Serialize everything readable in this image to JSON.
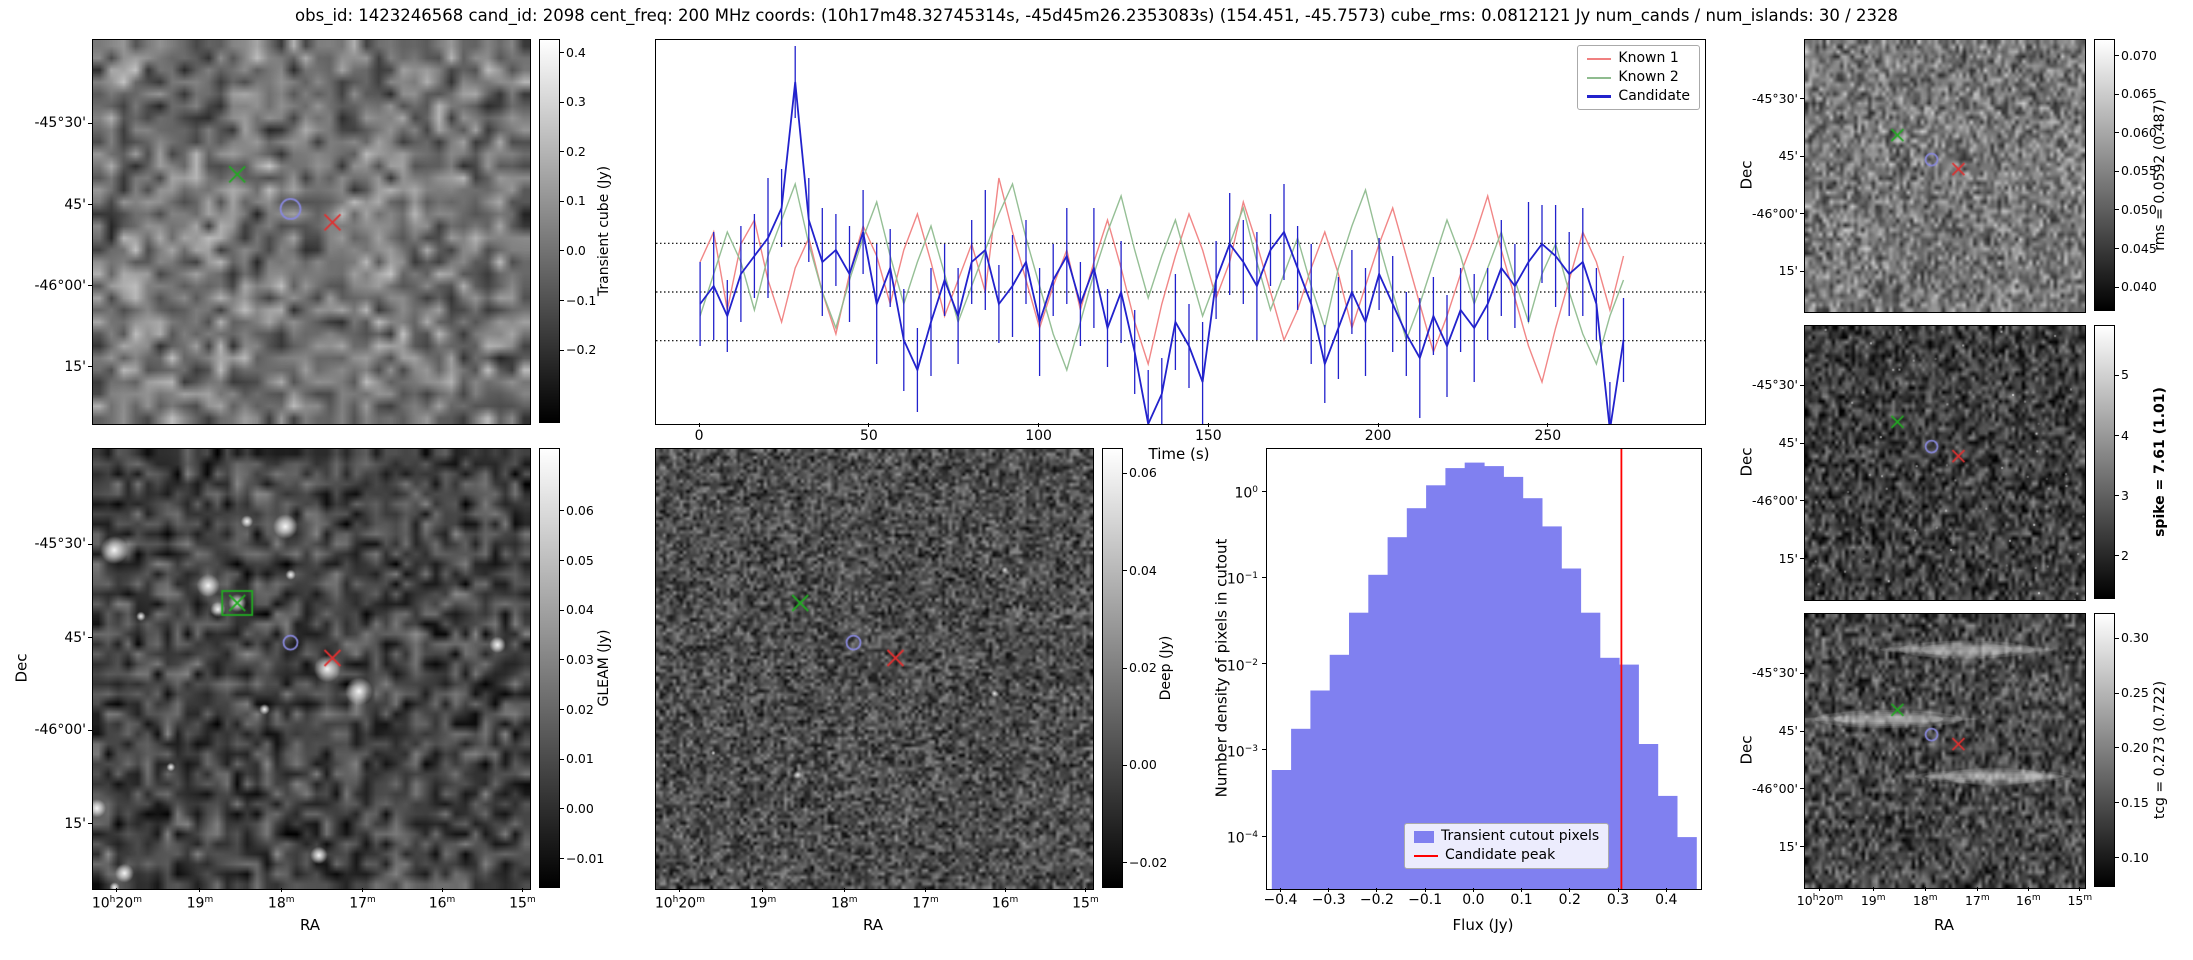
{
  "title": "obs_id: 1423246568 cand_id: 2098 cent_freq: 200 MHz coords: (10h17m48.32745314s, -45d45m26.2353083s) (154.451, -45.7573) cube_rms: 0.0812121 Jy num_cands / num_islands: 30 / 2328",
  "colors": {
    "known1": "#f08080",
    "known2": "#8fbc8f",
    "candidate": "#2222cc",
    "hist_fill": "#8080f0",
    "peak_line": "#ff0000",
    "marker_green": "#22aa22",
    "marker_red": "#e03030",
    "marker_blue": "#8888dd"
  },
  "axis_labels": {
    "ra": "RA",
    "dec": "Dec",
    "time": "Time (s)",
    "flux": "Flux (Jy)",
    "hist_y": "Number density of pixels in cutout"
  },
  "dec_ticks": [
    "-45°30'",
    "45'",
    "-46°00'",
    "15'"
  ],
  "ra_ticks": [
    "10h20m",
    "19m",
    "18m",
    "17m",
    "16m",
    "15m"
  ],
  "markers": {
    "green": {
      "x": 0.33,
      "y": 0.35
    },
    "blue": {
      "x": 0.452,
      "y": 0.44
    },
    "red": {
      "x": 0.548,
      "y": 0.475
    }
  },
  "panels": {
    "transient": {
      "cbar_label": "Transient cube (Jy)",
      "cbar_ticks": [
        "0.4",
        "0.3",
        "0.2",
        "0.1",
        "0.0",
        "-0.1",
        "-0.2"
      ]
    },
    "gleam": {
      "cbar_label": "GLEAM (Jy)",
      "cbar_ticks": [
        "0.06",
        "0.05",
        "0.04",
        "0.03",
        "0.02",
        "0.01",
        "0.00",
        "-0.01"
      ]
    },
    "deep": {
      "cbar_label": "Deep (Jy)",
      "cbar_ticks": [
        "0.06",
        "0.04",
        "0.02",
        "0.00",
        "-0.02"
      ]
    },
    "rms": {
      "cbar_label": "rms = 0.0592 (0.487)",
      "cbar_ticks": [
        "0.070",
        "0.065",
        "0.060",
        "0.055",
        "0.050",
        "0.045",
        "0.040"
      ]
    },
    "spike": {
      "cbar_label": "spike = 7.61 (1.01)",
      "cbar_ticks": [
        "5",
        "4",
        "3",
        "2"
      ]
    },
    "tcg": {
      "cbar_label": "tcg = 0.273 (0.722)",
      "cbar_ticks": [
        "0.30",
        "0.25",
        "0.20",
        "0.15",
        "0.10"
      ]
    }
  },
  "chart_data": [
    {
      "id": "lightcurve",
      "type": "line",
      "xlabel": "Time (s)",
      "xlim": [
        -13,
        296
      ],
      "ylim": [
        -0.22,
        0.42
      ],
      "xticks": [
        0,
        50,
        100,
        150,
        200,
        250
      ],
      "hlines": [
        0.0812121,
        0.0,
        -0.0812121
      ],
      "legend_loc": "upper right",
      "x": [
        0,
        4,
        8,
        12,
        16,
        20,
        24,
        28,
        32,
        36,
        40,
        44,
        48,
        52,
        56,
        60,
        64,
        68,
        72,
        76,
        80,
        84,
        88,
        92,
        96,
        100,
        104,
        108,
        112,
        116,
        120,
        124,
        128,
        132,
        136,
        140,
        144,
        148,
        152,
        156,
        160,
        164,
        168,
        172,
        176,
        180,
        184,
        188,
        192,
        196,
        200,
        204,
        208,
        212,
        216,
        220,
        224,
        228,
        232,
        236,
        240,
        244,
        248,
        252,
        256,
        260,
        264,
        268,
        272
      ],
      "series": [
        {
          "name": "Known 1",
          "y": [
            0.05,
            0.1,
            -0.03,
            0.08,
            0.12,
            0.02,
            -0.05,
            0.04,
            0.09,
            0.0,
            -0.07,
            0.03,
            0.11,
            0.06,
            -0.02,
            0.07,
            0.13,
            0.05,
            -0.04,
            0.02,
            0.08,
            0.0,
            0.19,
            0.1,
            0.02,
            -0.06,
            0.01,
            0.07,
            -0.03,
            0.05,
            0.12,
            0.04,
            -0.05,
            -0.12,
            -0.02,
            0.06,
            0.13,
            0.07,
            -0.01,
            0.05,
            0.15,
            0.08,
            0.0,
            -0.08,
            -0.03,
            0.04,
            0.1,
            0.03,
            -0.06,
            0.01,
            0.08,
            0.14,
            0.06,
            -0.02,
            -0.1,
            -0.04,
            0.03,
            0.09,
            0.16,
            0.07,
            -0.01,
            -0.09,
            -0.15,
            -0.06,
            0.02,
            0.1,
            0.05,
            -0.03,
            0.06
          ]
        },
        {
          "name": "Known 2",
          "y": [
            -0.04,
            0.03,
            0.1,
            0.05,
            -0.03,
            0.06,
            0.12,
            0.18,
            0.08,
            0.0,
            -0.06,
            0.02,
            0.09,
            0.15,
            0.06,
            -0.02,
            0.05,
            0.11,
            0.03,
            -0.05,
            0.01,
            0.07,
            0.13,
            0.18,
            0.09,
            0.01,
            -0.07,
            -0.13,
            -0.05,
            0.03,
            0.1,
            0.16,
            0.07,
            -0.01,
            0.06,
            0.12,
            0.04,
            -0.04,
            0.02,
            0.08,
            0.14,
            0.05,
            -0.03,
            0.03,
            0.09,
            0.01,
            -0.06,
            0.04,
            0.11,
            0.17,
            0.08,
            0.0,
            -0.08,
            -0.02,
            0.05,
            0.12,
            0.06,
            -0.02,
            0.04,
            0.1,
            0.02,
            -0.05,
            0.03,
            0.08,
            0.0,
            -0.07,
            -0.12,
            -0.04,
            0.02
          ]
        },
        {
          "name": "Candidate",
          "y": [
            -0.02,
            0.01,
            -0.04,
            0.03,
            0.06,
            0.09,
            0.14,
            0.35,
            0.12,
            0.05,
            0.07,
            0.03,
            0.1,
            -0.02,
            0.04,
            -0.08,
            -0.13,
            -0.05,
            0.02,
            -0.04,
            0.05,
            0.07,
            -0.02,
            0.01,
            0.05,
            -0.05,
            0.02,
            0.06,
            -0.02,
            0.04,
            -0.06,
            0.0,
            -0.1,
            -0.22,
            -0.17,
            -0.05,
            -0.09,
            -0.15,
            0.02,
            0.08,
            0.05,
            0.01,
            0.07,
            0.1,
            0.04,
            -0.02,
            -0.12,
            -0.06,
            0.0,
            -0.05,
            0.03,
            -0.02,
            -0.07,
            -0.11,
            -0.04,
            -0.09,
            -0.03,
            -0.06,
            -0.02,
            0.04,
            0.01,
            0.05,
            0.08,
            0.06,
            0.03,
            0.05,
            -0.02,
            -0.23,
            -0.08
          ],
          "yerr": [
            0.07,
            0.09,
            0.06,
            0.08,
            0.07,
            0.1,
            0.065,
            0.06,
            0.07,
            0.09,
            0.06,
            0.08,
            0.07,
            0.1,
            0.065,
            0.085,
            0.07,
            0.09,
            0.06,
            0.08,
            0.07,
            0.1,
            0.065,
            0.085,
            0.07,
            0.09,
            0.06,
            0.08,
            0.07,
            0.1,
            0.065,
            0.085,
            0.07,
            0.09,
            0.06,
            0.08,
            0.07,
            0.1,
            0.065,
            0.085,
            0.07,
            0.09,
            0.06,
            0.08,
            0.07,
            0.1,
            0.065,
            0.085,
            0.07,
            0.09,
            0.06,
            0.08,
            0.07,
            0.1,
            0.065,
            0.085,
            0.07,
            0.09,
            0.06,
            0.08,
            0.07,
            0.1,
            0.065,
            0.085,
            0.07,
            0.09,
            0.06,
            0.08,
            0.07
          ]
        }
      ]
    },
    {
      "id": "flux-histogram",
      "type": "bar",
      "xlabel": "Flux (Jy)",
      "ylabel": "Number density of pixels in cutout",
      "yscale": "log",
      "xlim": [
        -0.43,
        0.47
      ],
      "ylim": [
        2.5e-05,
        3.16
      ],
      "xticks": [
        -0.4,
        -0.3,
        -0.2,
        -0.1,
        0.0,
        0.1,
        0.2,
        0.3,
        0.4
      ],
      "ytick_exponents": [
        0,
        -1,
        -2,
        -3,
        -4
      ],
      "bin_start": -0.42,
      "bin_width": 0.04,
      "densities": [
        0.0006,
        0.0018,
        0.005,
        0.013,
        0.04,
        0.11,
        0.3,
        0.65,
        1.2,
        1.9,
        2.2,
        2.0,
        1.5,
        0.85,
        0.4,
        0.13,
        0.04,
        0.012,
        0.01,
        0.0012,
        0.0003,
        0.0001
      ],
      "candidate_peak": 0.305,
      "legend": [
        "Transient cutout pixels",
        "Candidate peak"
      ]
    }
  ]
}
